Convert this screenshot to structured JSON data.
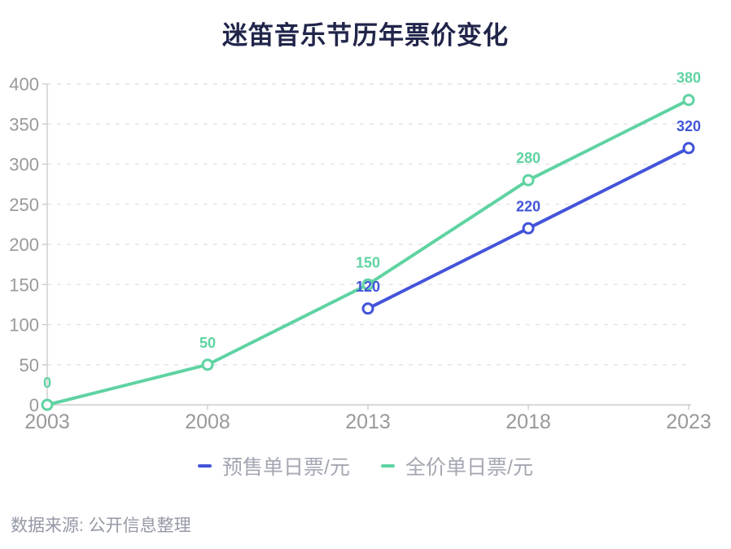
{
  "title": "迷笛音乐节历年票价变化",
  "source_note": "数据来源: 公开信息整理",
  "styles": {
    "title_color": "#21254a",
    "axis_label_color": "#999999",
    "axis_line_color": "#cccccc",
    "grid_color": "#e4e4e8",
    "legend_text_color": "#a4a7b2",
    "source_color": "#9599a6",
    "background": "#ffffff"
  },
  "chart_data": {
    "type": "line",
    "x": [
      "2003",
      "2008",
      "2013",
      "2018",
      "2023"
    ],
    "series": [
      {
        "name": "预售单日票/元",
        "color": "#4254d9",
        "values": [
          null,
          null,
          120,
          220,
          320
        ]
      },
      {
        "name": "全价单日票/元",
        "color": "#5fd3a2",
        "values": [
          0,
          50,
          150,
          280,
          380
        ]
      }
    ],
    "ylim": [
      0,
      400
    ],
    "ytick_step": 50,
    "yticks": [
      0,
      50,
      100,
      150,
      200,
      250,
      300,
      350,
      400
    ],
    "grid": "horizontal-dashed",
    "legend_position": "bottom",
    "data_labels": true,
    "marker": "open-circle"
  }
}
